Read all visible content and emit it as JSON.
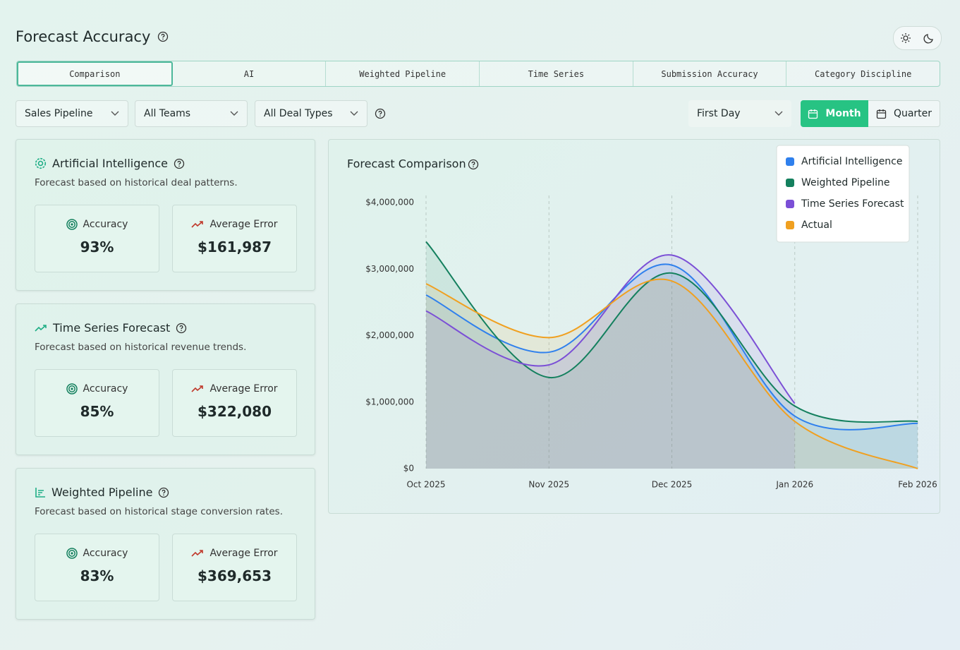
{
  "header": {
    "title": "Forecast Accuracy"
  },
  "tabs": [
    "Comparison",
    "AI",
    "Weighted Pipeline",
    "Time Series",
    "Submission Accuracy",
    "Category Discipline"
  ],
  "filters": [
    "Sales Pipeline",
    "All Teams",
    "All Deal Types"
  ],
  "date_anchor": "First Day",
  "period_toggle": [
    "Month",
    "Quarter"
  ],
  "cards": [
    {
      "title": "Artificial Intelligence",
      "description": "Forecast based on historical deal patterns.",
      "stats": [
        {
          "label": "Accuracy",
          "value": "93%"
        },
        {
          "label": "Average Error",
          "value": "$161,987"
        }
      ]
    },
    {
      "title": "Time Series Forecast",
      "description": "Forecast based on historical revenue trends.",
      "stats": [
        {
          "label": "Accuracy",
          "value": "85%"
        },
        {
          "label": "Average Error",
          "value": "$322,080"
        }
      ]
    },
    {
      "title": "Weighted Pipeline",
      "description": "Forecast based on historical stage conversion rates.",
      "stats": [
        {
          "label": "Accuracy",
          "value": "83%"
        },
        {
          "label": "Average Error",
          "value": "$369,653"
        }
      ]
    }
  ],
  "chart_data": {
    "type": "line",
    "title": "Forecast Comparison",
    "categories": [
      "Oct 2025",
      "Nov 2025",
      "Dec 2025",
      "Jan 2026",
      "Feb 2026"
    ],
    "series": [
      {
        "name": "Artificial Intelligence",
        "color": "#2f80ed",
        "values": [
          2610000,
          1750000,
          3060000,
          790000,
          680000
        ]
      },
      {
        "name": "Weighted Pipeline",
        "color": "#14805e",
        "values": [
          3410000,
          1370000,
          2940000,
          940000,
          710000
        ]
      },
      {
        "name": "Time Series Forecast",
        "color": "#7b4fd6",
        "values": [
          2370000,
          1560000,
          3210000,
          980000,
          null
        ]
      },
      {
        "name": "Actual",
        "color": "#f0a020",
        "values": [
          2780000,
          1970000,
          2820000,
          710000,
          0
        ]
      }
    ],
    "ylim": [
      0,
      4000000
    ],
    "yticks": [
      {
        "value": 0,
        "label": "$0"
      },
      {
        "value": 1000000,
        "label": "$1,000,000"
      },
      {
        "value": 2000000,
        "label": "$2,000,000"
      },
      {
        "value": 3000000,
        "label": "$3,000,000"
      },
      {
        "value": 4000000,
        "label": "$4,000,000"
      }
    ],
    "grid": true,
    "legend": "upper right"
  }
}
